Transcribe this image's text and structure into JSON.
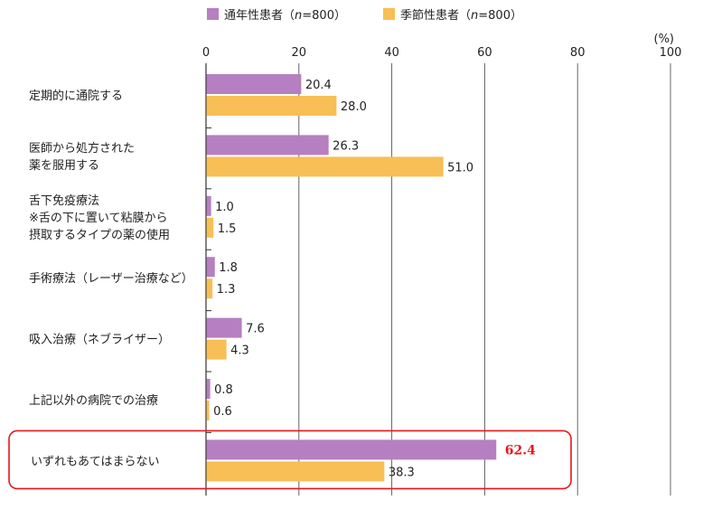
{
  "chart_data": {
    "type": "bar",
    "orientation": "horizontal",
    "unit_label": "(%)",
    "xlim": [
      0,
      100
    ],
    "ticks": [
      0,
      20,
      40,
      60,
      80,
      100
    ],
    "legend_placement": "top-center",
    "series": [
      {
        "name": "通年性患者（n=800）",
        "name_parts": [
          "通年性患者（",
          "n",
          "=800）"
        ],
        "color": "#b67fc1",
        "values": [
          20.4,
          26.3,
          1.0,
          1.8,
          7.6,
          0.8,
          62.4
        ],
        "labels": [
          "20.4",
          "26.3",
          "1.0",
          "1.8",
          "7.6",
          "0.8",
          "62.4"
        ]
      },
      {
        "name": "季節性患者（n=800）",
        "name_parts": [
          "季節性患者（",
          "n",
          "=800）"
        ],
        "color": "#f7bf55",
        "values": [
          28.0,
          51.0,
          1.5,
          1.3,
          4.3,
          0.6,
          38.3
        ],
        "labels": [
          "28.0",
          "51.0",
          "1.5",
          "1.3",
          "4.3",
          "0.6",
          "38.3"
        ]
      }
    ],
    "categories": [
      [
        "定期的に通院する"
      ],
      [
        "医師から処方された",
        "薬を服用する"
      ],
      [
        "舌下免疫療法",
        "※舌の下に置いて粘膜から",
        "摂取するタイプの薬の使用"
      ],
      [
        "手術療法（レーザー治療など）"
      ],
      [
        "吸入治療（ネブライザー）"
      ],
      [
        "上記以外の病院での治療"
      ],
      [
        "いずれもあてはまらない"
      ]
    ],
    "highlight": {
      "category_index": 6,
      "series_index": 0,
      "color": "#e8161d"
    }
  }
}
